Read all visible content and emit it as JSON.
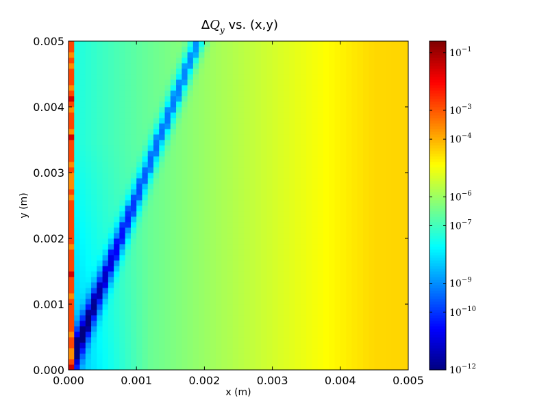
{
  "chart_data": {
    "type": "heatmap",
    "title": {
      "delta": "Δ",
      "q": "Q",
      "sub": "y",
      "rest": " vs. (x,y)"
    },
    "xlabel": "x (m)",
    "ylabel": "y (m)",
    "xlim": [
      0,
      0.005
    ],
    "ylim": [
      0,
      0.005
    ],
    "x_ticks": [
      "0.000",
      "0.001",
      "0.002",
      "0.003",
      "0.004",
      "0.005"
    ],
    "y_ticks": [
      "0.000",
      "0.001",
      "0.002",
      "0.003",
      "0.004",
      "0.005"
    ],
    "grid": false,
    "colormap": "jet",
    "colorbar": {
      "scale": "log",
      "min_exp": -12,
      "max_exp": -0.6,
      "ticks": [
        {
          "base": "10",
          "exp": "−1",
          "value": -1
        },
        {
          "base": "10",
          "exp": "−3",
          "value": -3
        },
        {
          "base": "10",
          "exp": "−4",
          "value": -4
        },
        {
          "base": "10",
          "exp": "−6",
          "value": -6
        },
        {
          "base": "10",
          "exp": "−7",
          "value": -7
        },
        {
          "base": "10",
          "exp": "−9",
          "value": -9
        },
        {
          "base": "10",
          "exp": "−10",
          "value": -10
        },
        {
          "base": "10",
          "exp": "−12",
          "value": -12
        }
      ]
    },
    "grid_size": [
      60,
      60
    ],
    "ridge_line": {
      "from": [
        0.0,
        0.0
      ],
      "to": [
        0.0019,
        0.005
      ]
    },
    "description_values": {
      "left_edge_log10": -3.5,
      "near_field_log10": -7.3,
      "far_right_log10": -5.3
    }
  }
}
